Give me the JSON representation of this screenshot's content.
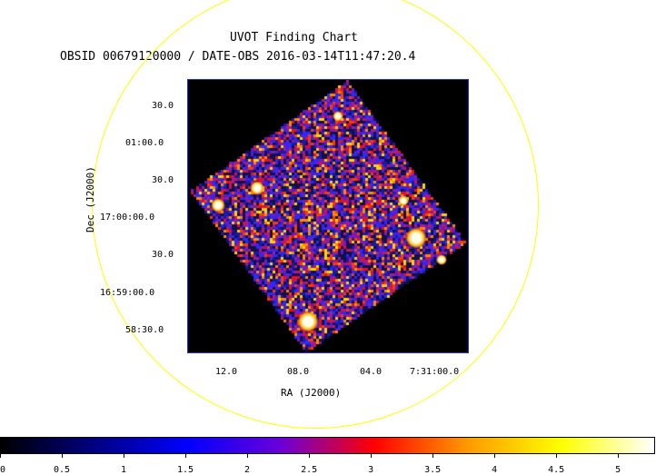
{
  "title": "UVOT Finding Chart",
  "subtitle": "OBSID 00679120000 / DATE-OBS 2016-03-14T11:47:20.4",
  "axes": {
    "xlabel": "RA (J2000)",
    "ylabel": "Dec (J2000)",
    "ra_ticks": [
      "12.0",
      "08.0",
      "04.0",
      "7:31:00.0"
    ],
    "dec_ticks": [
      "30.0",
      "01:00.0",
      "30.0",
      "17:00:00.0",
      "30.0",
      "16:59:00.0",
      "58:30.0"
    ]
  },
  "colorbar": {
    "min": 0,
    "max": 5.3,
    "ticks": [
      "0",
      "0.5",
      "1",
      "1.5",
      "2",
      "2.5",
      "3",
      "3.5",
      "4",
      "4.5",
      "5"
    ],
    "colormap": [
      "#000000",
      "#000080",
      "#0000ff",
      "#6a00d8",
      "#ff0000",
      "#ff9900",
      "#ffff00",
      "#ffffff"
    ]
  },
  "colors": {
    "fov_circle": "#ffff00",
    "frame_border": "#2233cc",
    "background": "#ffffff"
  }
}
